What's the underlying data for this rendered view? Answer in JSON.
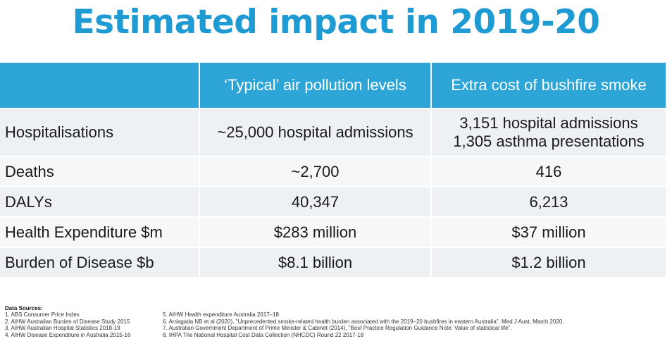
{
  "title": "Estimated impact in 2019-20",
  "table": {
    "headers": [
      "",
      "‘Typical’ air pollution levels",
      "Extra cost of bushfire smoke"
    ],
    "rows": [
      {
        "label": "Hospitalisations",
        "typical": "~25,000 hospital admissions",
        "extra": [
          "3,151 hospital admissions",
          "1,305 asthma presentations"
        ]
      },
      {
        "label": "Deaths",
        "typical": "~2,700",
        "extra": [
          "416"
        ]
      },
      {
        "label": "DALYs",
        "typical": "40,347",
        "extra": [
          "6,213"
        ]
      },
      {
        "label": "Health Expenditure $m",
        "typical": "$283 million",
        "extra": [
          "$37 million"
        ]
      },
      {
        "label": "Burden of Disease $b",
        "typical": "$8.1 billion",
        "extra": [
          "$1.2 billion"
        ]
      }
    ]
  },
  "sources": {
    "heading": "Data Sources:",
    "left": [
      "1. ABS Consumer Price Index",
      "2. AIHW Australian Burden of Disease Study 2015",
      "3. AIHW Australian Hospital Statistics 2018-19",
      "4. AIHW Disease Expenditure in Australia 2015-16"
    ],
    "right": [
      "5. AIHW Health expenditure Australia 2017–18",
      "6. Arriagada NB et al (2020), \"Unprecedented smoke-related health burden associated with the 2019–20 bushfires in eastern Australia\". Med J Aust, March 2020.",
      "7. Australian Government Department of Prime Minister & Cabinet (2014), \"Best Practice Regulation Guidance Note: Value of statistical life\".",
      "8. IHPA The National Hospital Cost Data Collection (NHCDC) Round 22 2017-18"
    ]
  },
  "colors": {
    "title": "#1f9bd4",
    "header_bg": "#2da5d6",
    "row_bg": "#eef1f4",
    "row_alt_bg": "#f5f7f9"
  }
}
